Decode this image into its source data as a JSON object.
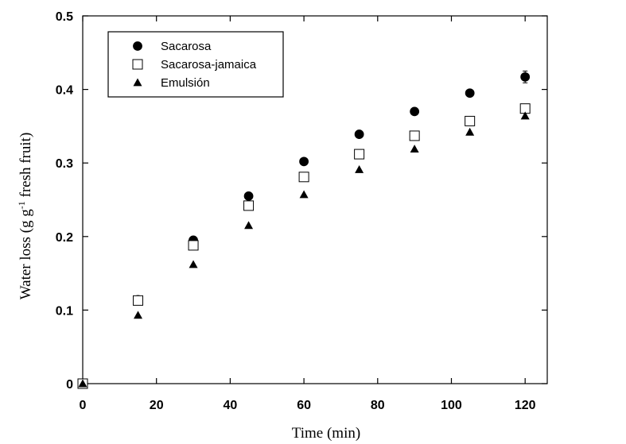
{
  "chart_data": {
    "type": "scatter",
    "title": "",
    "xlabel": "Time (min)",
    "ylabel_parts": [
      "Water loss (g g",
      "-1",
      " fresh fruit)"
    ],
    "xlim": [
      0,
      126
    ],
    "ylim": [
      0,
      0.5
    ],
    "xticks": [
      0,
      20,
      40,
      60,
      80,
      100,
      120
    ],
    "xtick_labels": [
      "0",
      "20",
      "40",
      "60",
      "80",
      "100",
      "120"
    ],
    "yticks": [
      0,
      0.1,
      0.2,
      0.3,
      0.4,
      0.5
    ],
    "ytick_labels": [
      "0",
      "0.1",
      "0.2",
      "0.3",
      "0.4",
      "0.5"
    ],
    "legend_position": "top-left",
    "x": [
      0,
      15,
      30,
      45,
      60,
      75,
      90,
      105,
      120
    ],
    "series": [
      {
        "name": "Sacarosa",
        "marker": "filled-circle",
        "values": [
          0,
          0.114,
          0.195,
          0.255,
          0.302,
          0.339,
          0.37,
          0.395,
          0.417
        ],
        "errors": [
          0,
          0,
          0,
          0,
          0,
          0,
          0,
          0,
          0.008
        ]
      },
      {
        "name": "Sacarosa-jamaica",
        "marker": "open-square",
        "values": [
          0,
          0.113,
          0.188,
          0.242,
          0.281,
          0.312,
          0.337,
          0.357,
          0.374
        ],
        "errors": [
          0,
          0,
          0,
          0,
          0,
          0,
          0,
          0,
          0
        ]
      },
      {
        "name": "Emulsión",
        "marker": "filled-triangle",
        "values": [
          0,
          0.093,
          0.162,
          0.215,
          0.257,
          0.291,
          0.319,
          0.342,
          0.364
        ],
        "errors": [
          0,
          0,
          0,
          0,
          0,
          0,
          0,
          0,
          0
        ]
      }
    ]
  }
}
